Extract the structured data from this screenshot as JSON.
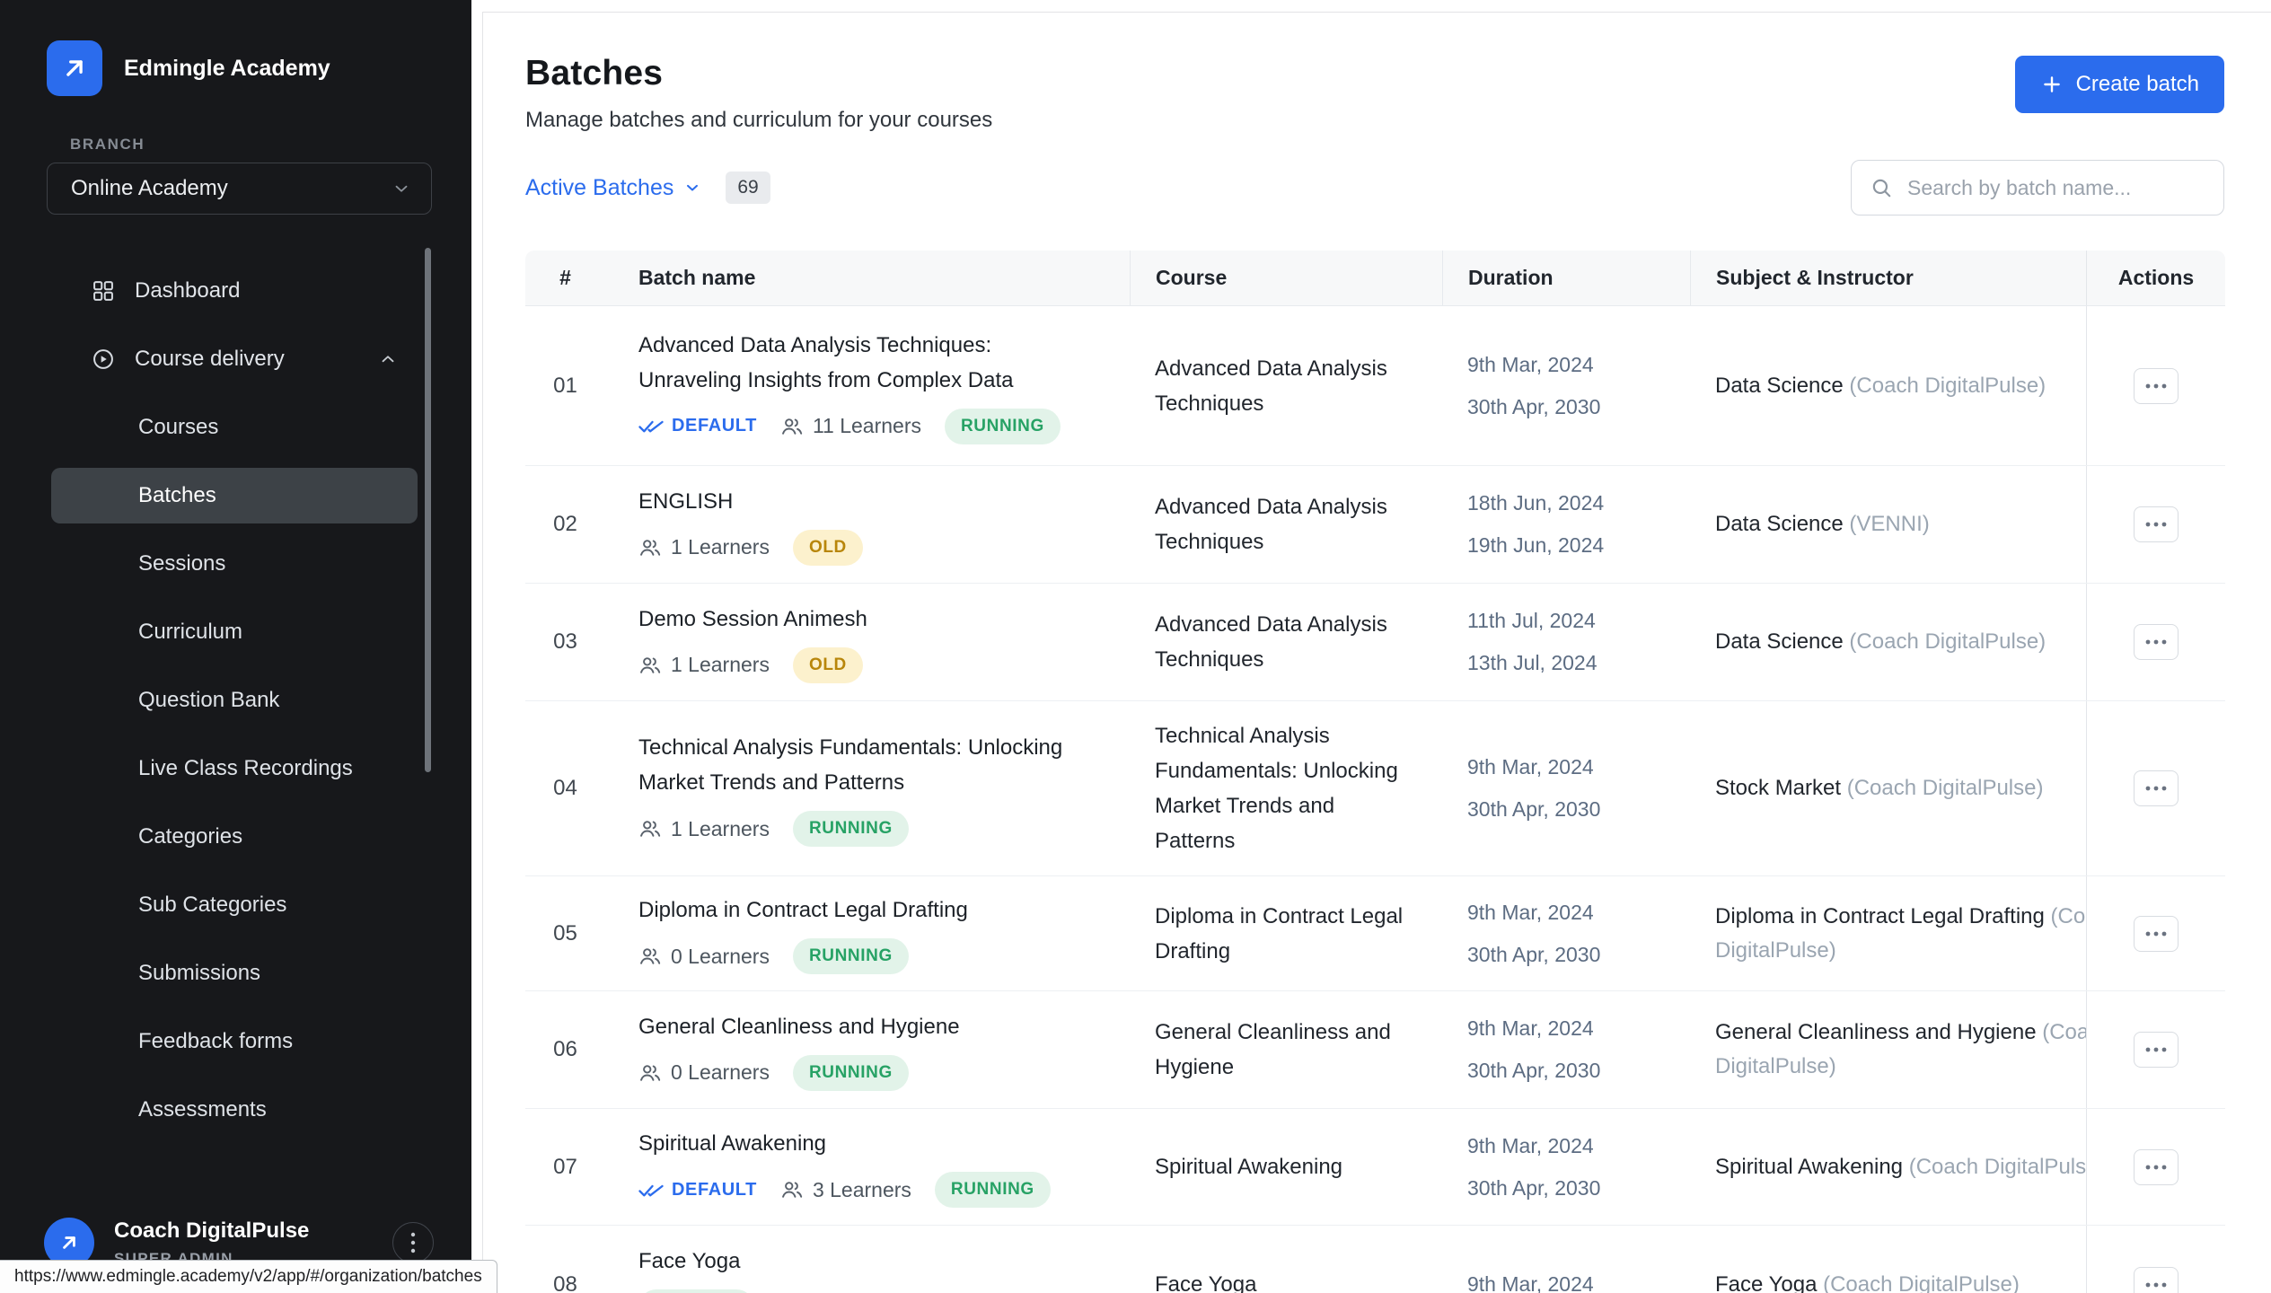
{
  "app": {
    "brand": "Edmingle Academy",
    "branch_label": "BRANCH",
    "branch_value": "Online Academy"
  },
  "sidebar": {
    "items": [
      {
        "label": "Dashboard",
        "icon": "dashboard-icon"
      },
      {
        "label": "Course delivery",
        "icon": "play-circle-icon",
        "expanded": true
      }
    ],
    "subitems": [
      "Courses",
      "Batches",
      "Sessions",
      "Curriculum",
      "Question Bank",
      "Live Class Recordings",
      "Categories",
      "Sub Categories",
      "Submissions",
      "Feedback forms",
      "Assessments"
    ],
    "active_subitem": "Batches",
    "user": {
      "name": "Coach DigitalPulse",
      "role": "SUPER ADMIN"
    }
  },
  "header": {
    "title": "Batches",
    "subtitle": "Manage batches and curriculum for your courses",
    "create_button_label": "Create batch"
  },
  "toolbar": {
    "filter_label": "Active Batches",
    "count": "69",
    "search_placeholder": "Search by batch name..."
  },
  "labels": {
    "default_badge": "DEFAULT",
    "running_status": "RUNNING",
    "old_status": "OLD"
  },
  "table": {
    "columns": [
      "#",
      "Batch name",
      "Course",
      "Duration",
      "Subject & Instructor",
      "Actions"
    ],
    "rows": [
      {
        "index": "01",
        "name_lines": [
          "Advanced Data Analysis Techniques:",
          "Unraveling Insights from Complex Data"
        ],
        "default": true,
        "learners": "11 Learners",
        "status": "RUNNING",
        "course_lines": [
          "Advanced Data Analysis",
          "Techniques"
        ],
        "duration": [
          "9th Mar, 2024",
          "30th Apr, 2030"
        ],
        "subject": "Data Science",
        "instructor": "(Coach DigitalPulse)"
      },
      {
        "index": "02",
        "name_lines": [
          "ENGLISH"
        ],
        "default": false,
        "learners": "1 Learners",
        "status": "OLD",
        "course_lines": [
          "Advanced Data Analysis",
          "Techniques"
        ],
        "duration": [
          "18th Jun, 2024",
          "19th Jun, 2024"
        ],
        "subject": "Data Science",
        "instructor": "(VENNI)"
      },
      {
        "index": "03",
        "name_lines": [
          "Demo Session Animesh"
        ],
        "default": false,
        "learners": "1 Learners",
        "status": "OLD",
        "course_lines": [
          "Advanced Data Analysis",
          "Techniques"
        ],
        "duration": [
          "11th Jul, 2024",
          "13th Jul, 2024"
        ],
        "subject": "Data Science",
        "instructor": "(Coach DigitalPulse)"
      },
      {
        "index": "04",
        "name_lines": [
          "Technical Analysis Fundamentals: Unlocking",
          "Market Trends and Patterns"
        ],
        "default": false,
        "learners": "1 Learners",
        "status": "RUNNING",
        "course_lines": [
          "Technical Analysis",
          "Fundamentals: Unlocking",
          "Market Trends and",
          "Patterns"
        ],
        "duration": [
          "9th Mar, 2024",
          "30th Apr, 2030"
        ],
        "subject": "Stock Market",
        "instructor": "(Coach DigitalPulse)"
      },
      {
        "index": "05",
        "name_lines": [
          "Diploma in Contract Legal Drafting"
        ],
        "default": false,
        "learners": "0 Learners",
        "status": "RUNNING",
        "course_lines": [
          "Diploma in Contract Legal",
          "Drafting"
        ],
        "duration": [
          "9th Mar, 2024",
          "30th Apr, 2030"
        ],
        "subject": "Diploma in Contract Legal Drafting",
        "instructor": "(Coach DigitalPulse)"
      },
      {
        "index": "06",
        "name_lines": [
          "General Cleanliness and Hygiene"
        ],
        "default": false,
        "learners": "0 Learners",
        "status": "RUNNING",
        "course_lines": [
          "General Cleanliness and",
          "Hygiene"
        ],
        "duration": [
          "9th Mar, 2024",
          "30th Apr, 2030"
        ],
        "subject": "General Cleanliness and Hygiene",
        "instructor": "(Coach DigitalPulse)"
      },
      {
        "index": "07",
        "name_lines": [
          "Spiritual Awakening"
        ],
        "default": true,
        "learners": "3 Learners",
        "status": "RUNNING",
        "course_lines": [
          "Spiritual Awakening"
        ],
        "duration": [
          "9th Mar, 2024",
          "30th Apr, 2030"
        ],
        "subject": "Spiritual Awakening",
        "instructor": "(Coach DigitalPulse)"
      },
      {
        "index": "08",
        "name_lines": [
          "Face Yoga"
        ],
        "default": false,
        "learners": "",
        "status": "RUNNING",
        "course_lines": [
          "Face Yoga"
        ],
        "duration": [
          "9th Mar, 2024"
        ],
        "subject": "Face Yoga",
        "instructor": "(Coach DigitalPulse)"
      }
    ]
  },
  "statusbar": {
    "url": "https://www.edmingle.academy/v2/app/#/organization/batches"
  },
  "colors": {
    "accent_blue": "#2b6ced",
    "running_bg": "#e2f3e9",
    "running_text": "#27a265",
    "old_bg": "#fcf1cd",
    "old_text": "#b8860b",
    "sidebar_bg": "#17181b"
  }
}
